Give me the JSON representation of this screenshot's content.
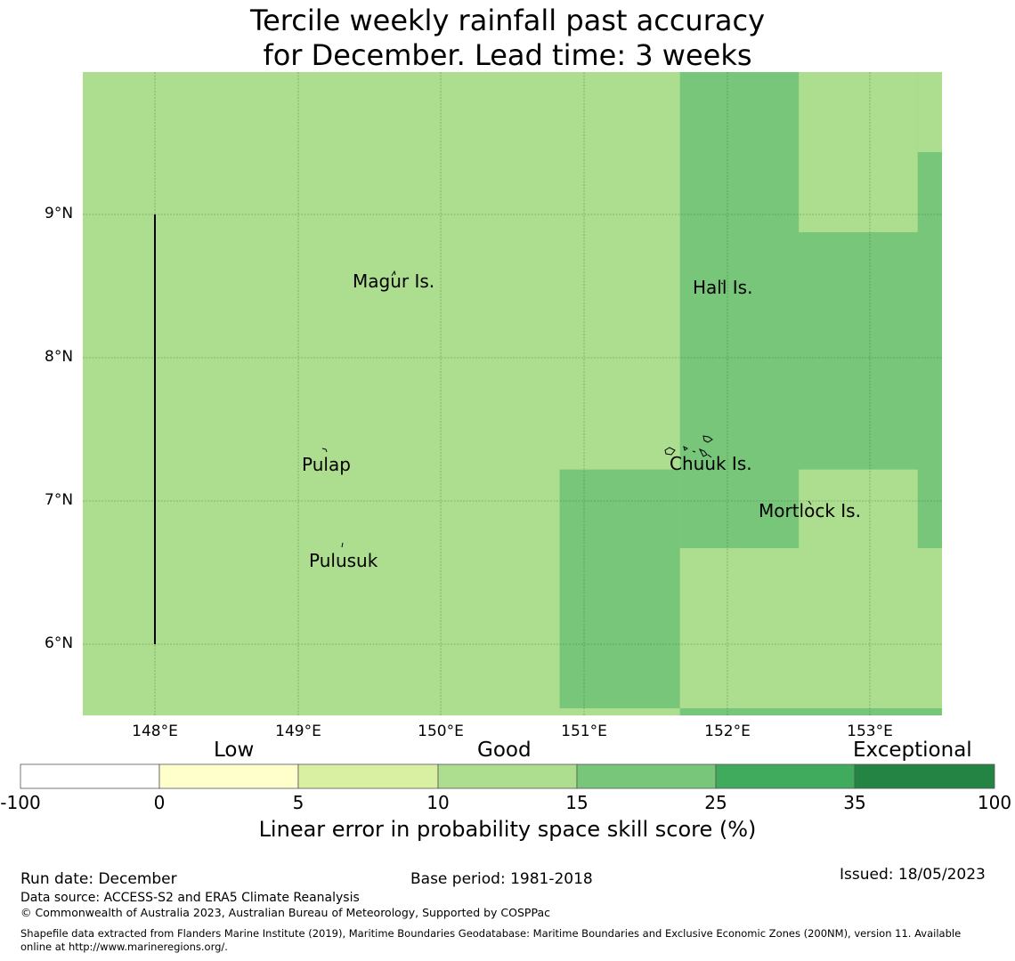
{
  "title": {
    "line1": "Tercile weekly rainfall past accuracy",
    "line2": "for December. Lead time: 3 weeks"
  },
  "map": {
    "lat_labels": [
      "9°N",
      "8°N",
      "7°N",
      "6°N"
    ],
    "lon_labels": [
      "148°E",
      "149°E",
      "150°E",
      "151°E",
      "152°E",
      "153°E"
    ],
    "extent": {
      "lon_min": 147.5,
      "lon_max": 153.5,
      "lat_min": 5.5,
      "lat_max": 10.0
    },
    "places": [
      {
        "name": "Magur Is.",
        "lon": 149.68,
        "lat": 8.58
      },
      {
        "name": "Hall Is.",
        "lon": 151.85,
        "lat": 8.55
      },
      {
        "name": "Pulap",
        "lon": 149.2,
        "lat": 7.35
      },
      {
        "name": "Chuuk Is.",
        "lon": 151.75,
        "lat": 7.4
      },
      {
        "name": "Mortlock Is.",
        "lon": 152.6,
        "lat": 6.95
      },
      {
        "name": "Pulusuk",
        "lon": 149.3,
        "lat": 6.7
      }
    ],
    "skill_regions": [
      {
        "lon": [
          147.5,
          153.5
        ],
        "lat": [
          5.5,
          10.0
        ],
        "category": "10-15"
      },
      {
        "lon": [
          151.67,
          153.5
        ],
        "lat": [
          5.5,
          10.0
        ],
        "category": "15-25"
      },
      {
        "lon": [
          152.5,
          153.33
        ],
        "lat": [
          8.88,
          10.0
        ],
        "category": "10-15"
      },
      {
        "lon": [
          153.33,
          153.5
        ],
        "lat": [
          9.44,
          10.0
        ],
        "category": "10-15"
      },
      {
        "lon": [
          150.83,
          151.67
        ],
        "lat": [
          5.55,
          7.22
        ],
        "category": "15-25"
      },
      {
        "lon": [
          152.5,
          153.33
        ],
        "lat": [
          6.67,
          7.22
        ],
        "category": "10-15"
      },
      {
        "lon": [
          151.67,
          153.5
        ],
        "lat": [
          5.55,
          6.67
        ],
        "category": "10-15"
      }
    ],
    "boundary_line": {
      "lon": 148.0,
      "lat": [
        6.0,
        9.0
      ]
    }
  },
  "colorbar": {
    "categories": [
      "Low",
      "Good",
      "Exceptional"
    ],
    "bins": [
      {
        "range": "-100 to 0",
        "color": "#ffffff"
      },
      {
        "range": "0 to 5",
        "color": "#ffffcc"
      },
      {
        "range": "5 to 10",
        "color": "#d9f0a3"
      },
      {
        "range": "10 to 15",
        "color": "#addd8e"
      },
      {
        "range": "15 to 25",
        "color": "#78c679"
      },
      {
        "range": "25 to 35",
        "color": "#41ab5d"
      },
      {
        "range": "35 to 100",
        "color": "#238443"
      }
    ],
    "tick_labels": [
      "-100",
      "0",
      "5",
      "10",
      "15",
      "25",
      "35",
      "100"
    ],
    "title": "Linear error in probability space skill score (%)"
  },
  "colors": {
    "light_green": "#addd8e",
    "mid_green": "#78c679"
  },
  "footer": {
    "run_date": "Run date: December",
    "base_period": "Base period: 1981-2018",
    "issued": "Issued: 18/05/2023",
    "data_source": "Data source: ACCESS-S2 and ERA5 Climate Reanalysis",
    "copyright": "© Commonwealth of Australia 2023, Australian Bureau of Meteorology, Supported by COSPPac",
    "shapefile_line1": "Shapefile data extracted from Flanders Marine Institute (2019), Maritime Boundaries Geodatabase: Maritime Boundaries and Exclusive Economic Zones (200NM), version 11. Available",
    "shapefile_line2": "online at http://www.marineregions.org/."
  }
}
